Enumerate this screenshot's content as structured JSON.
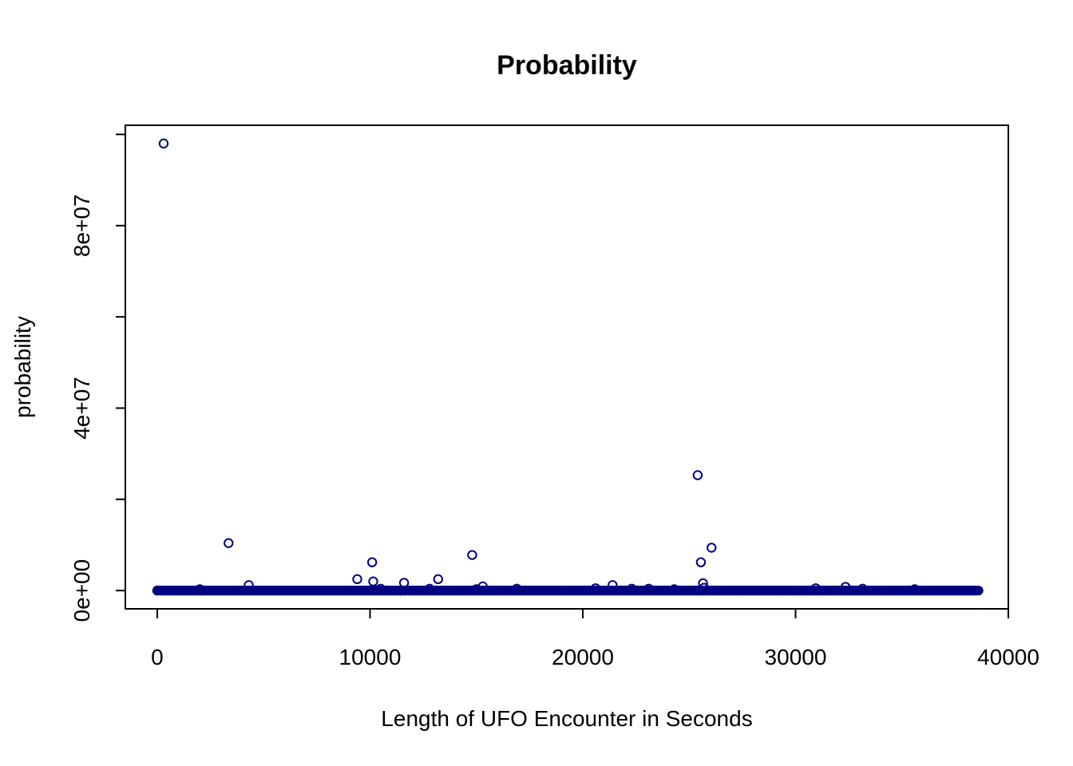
{
  "chart_data": {
    "type": "scatter",
    "title": "Probability",
    "xlabel": "Length of UFO Encounter in Seconds",
    "ylabel": "probability",
    "xlim": [
      -1500,
      40000
    ],
    "ylim": [
      -4000000,
      102000000
    ],
    "x_ticks": [
      0,
      10000,
      20000,
      30000,
      40000
    ],
    "x_tick_labels": [
      "0",
      "10000",
      "20000",
      "30000",
      "40000"
    ],
    "y_ticks": [
      0,
      20000000,
      40000000,
      60000000,
      80000000,
      100000000
    ],
    "y_tick_labels": [
      {
        "value": 0,
        "label": "0e+00"
      },
      {
        "value": 40000000,
        "label": "4e+07"
      },
      {
        "value": 80000000,
        "label": "8e+07"
      }
    ],
    "marker": "open-circle",
    "color": "#000080",
    "grid": false,
    "baseline_cluster": {
      "x_start": 0,
      "x_end": 38600,
      "y": 0
    },
    "points": [
      {
        "x": 300,
        "y": 98000000
      },
      {
        "x": 3350,
        "y": 10400000
      },
      {
        "x": 4300,
        "y": 1200000
      },
      {
        "x": 2000,
        "y": 300000
      },
      {
        "x": 9400,
        "y": 2500000
      },
      {
        "x": 10100,
        "y": 6200000
      },
      {
        "x": 10150,
        "y": 2000000
      },
      {
        "x": 10500,
        "y": 400000
      },
      {
        "x": 11600,
        "y": 1700000
      },
      {
        "x": 13200,
        "y": 2500000
      },
      {
        "x": 12800,
        "y": 400000
      },
      {
        "x": 14800,
        "y": 7800000
      },
      {
        "x": 15300,
        "y": 900000
      },
      {
        "x": 15000,
        "y": 300000
      },
      {
        "x": 16900,
        "y": 400000
      },
      {
        "x": 20600,
        "y": 500000
      },
      {
        "x": 21400,
        "y": 1200000
      },
      {
        "x": 22300,
        "y": 400000
      },
      {
        "x": 23100,
        "y": 400000
      },
      {
        "x": 24300,
        "y": 300000
      },
      {
        "x": 25400,
        "y": 25300000
      },
      {
        "x": 25550,
        "y": 6200000
      },
      {
        "x": 26050,
        "y": 9400000
      },
      {
        "x": 25650,
        "y": 1600000
      },
      {
        "x": 25700,
        "y": 600000
      },
      {
        "x": 30950,
        "y": 500000
      },
      {
        "x": 32350,
        "y": 800000
      },
      {
        "x": 33150,
        "y": 400000
      },
      {
        "x": 35600,
        "y": 300000
      }
    ]
  }
}
